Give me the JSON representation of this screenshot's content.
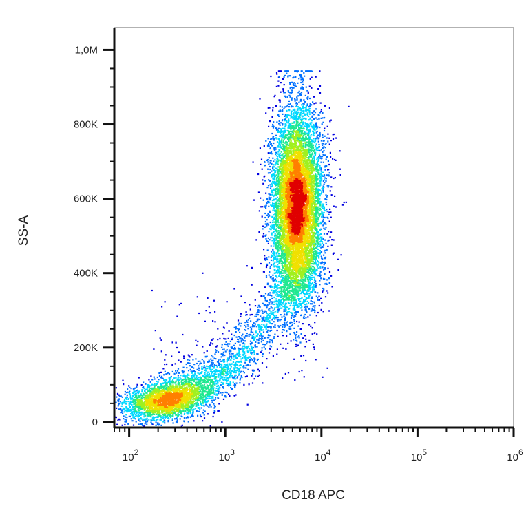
{
  "chart_data": {
    "type": "scatter",
    "subtype": "flow-cytometry-density",
    "xlabel": "CD18 APC",
    "ylabel": "SS-A",
    "x_scale": "log",
    "xlim": [
      70,
      1000000
    ],
    "ylim": [
      -15000,
      1060000
    ],
    "x_ticks": [
      {
        "value": 100,
        "base": "10",
        "exp": "2"
      },
      {
        "value": 1000,
        "base": "10",
        "exp": "3"
      },
      {
        "value": 10000,
        "base": "10",
        "exp": "4"
      },
      {
        "value": 100000,
        "base": "10",
        "exp": "5"
      },
      {
        "value": 1000000,
        "base": "10",
        "exp": "6"
      }
    ],
    "y_ticks": [
      {
        "value": 0,
        "label": "0"
      },
      {
        "value": 200000,
        "label": "200K"
      },
      {
        "value": 400000,
        "label": "400K"
      },
      {
        "value": 600000,
        "label": "600K"
      },
      {
        "value": 800000,
        "label": "800K"
      },
      {
        "value": 1000000,
        "label": "1,0M"
      }
    ],
    "populations": [
      {
        "name": "low-cluster",
        "x_center": 250,
        "y_center": 60000,
        "points": 2600
      },
      {
        "name": "high-cluster",
        "x_center": 5500,
        "y_center": 580000,
        "points": 9000
      },
      {
        "name": "bridge",
        "x_center": 1500,
        "y_center": 120000,
        "points": 1500
      }
    ],
    "density_colormap": [
      "#0000e0",
      "#0070ff",
      "#00d8ff",
      "#20e890",
      "#a0f020",
      "#f0e000",
      "#ff8000",
      "#e00000"
    ],
    "grid": false,
    "legend": "none"
  }
}
